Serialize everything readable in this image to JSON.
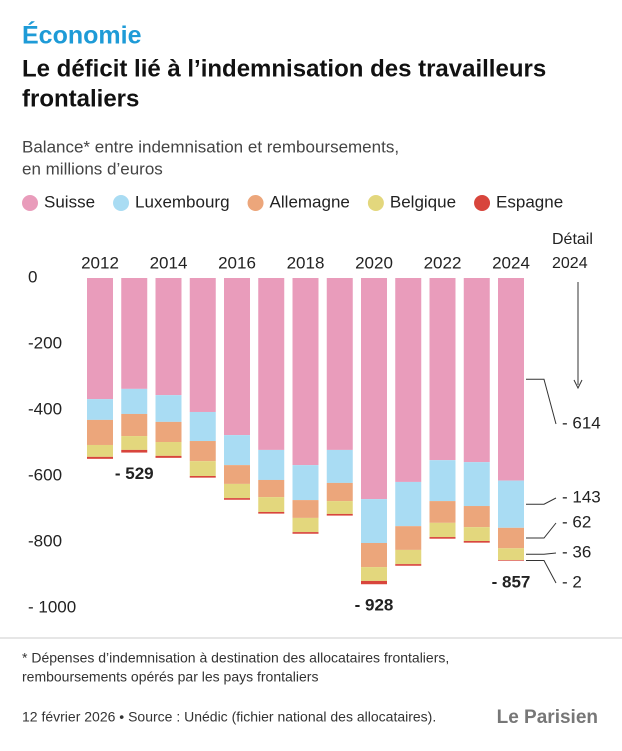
{
  "header": "Économie",
  "chart_data": {
    "type": "stacked-bar",
    "title": "Le déficit lié à l’indemnisation des travailleurs frontaliers",
    "subtitle": [
      "Balance* entre indemnisation et remboursements,",
      "en millions d’euros"
    ],
    "categories": [
      "2012",
      null,
      "2014",
      null,
      "2016",
      null,
      "2018",
      null,
      "2020",
      null,
      "2022",
      null,
      "2024"
    ],
    "series": [
      {
        "name": "Suisse",
        "color": "#e99cbb",
        "values": [
          -367,
          -336,
          -355,
          -406,
          -476,
          -521,
          -567,
          -521,
          -670,
          -618,
          -552,
          -558,
          -614
        ],
        "value_labels": [
          null,
          null,
          null,
          null,
          null,
          null,
          null,
          null,
          null,
          null,
          null,
          null,
          "- 614"
        ]
      },
      {
        "name": "Luxembourg",
        "color": "#a9dcf3",
        "values": [
          -63,
          -76,
          -81,
          -88,
          -91,
          -91,
          -106,
          -100,
          -133,
          -134,
          -124,
          -133,
          -143
        ],
        "value_labels": [
          null,
          null,
          null,
          null,
          null,
          null,
          null,
          null,
          null,
          null,
          null,
          null,
          "- 143"
        ]
      },
      {
        "name": "Allemagne",
        "color": "#eca67b",
        "values": [
          -76,
          -67,
          -61,
          -61,
          -57,
          -52,
          -54,
          -55,
          -73,
          -72,
          -66,
          -64,
          -62
        ],
        "value_labels": [
          null,
          null,
          null,
          null,
          null,
          null,
          null,
          null,
          null,
          null,
          null,
          null,
          "- 62"
        ]
      },
      {
        "name": "Belgique",
        "color": "#e3d77d",
        "values": [
          -36,
          -42,
          -42,
          -45,
          -43,
          -45,
          -43,
          -39,
          -42,
          -43,
          -43,
          -42,
          -36
        ],
        "value_labels": [
          null,
          null,
          null,
          null,
          null,
          null,
          null,
          null,
          null,
          null,
          null,
          null,
          "- 36"
        ]
      },
      {
        "name": "Espagne",
        "color": "#d8453c",
        "values": [
          -6,
          -8,
          -6,
          -5,
          -5,
          -5,
          -5,
          -5,
          -10,
          -5,
          -5,
          -5,
          -2
        ],
        "value_labels": [
          null,
          null,
          null,
          null,
          null,
          null,
          null,
          null,
          null,
          null,
          null,
          null,
          "- 2"
        ]
      }
    ],
    "totals": {
      "values": [
        null,
        -529,
        null,
        null,
        null,
        null,
        null,
        null,
        -928,
        null,
        null,
        null,
        -857
      ],
      "value_labels": [
        null,
        "- 529",
        null,
        null,
        null,
        null,
        null,
        null,
        "- 928",
        null,
        null,
        null,
        "- 857"
      ]
    },
    "detail_title": [
      "Détail",
      "2024"
    ],
    "ylim": [
      0,
      -1000
    ],
    "yticks": [
      0,
      -200,
      -400,
      -600,
      -800,
      {
        "value": -1000,
        "label": "- 1000"
      }
    ]
  },
  "footnote": [
    "* Dépenses d’indemnisation à destination des allocataires frontaliers,",
    "remboursements opérés par les pays frontaliers"
  ],
  "source": "12 février 2026 • Source : Unédic (fichier national des allocataires).",
  "logo": "Le Parisien"
}
